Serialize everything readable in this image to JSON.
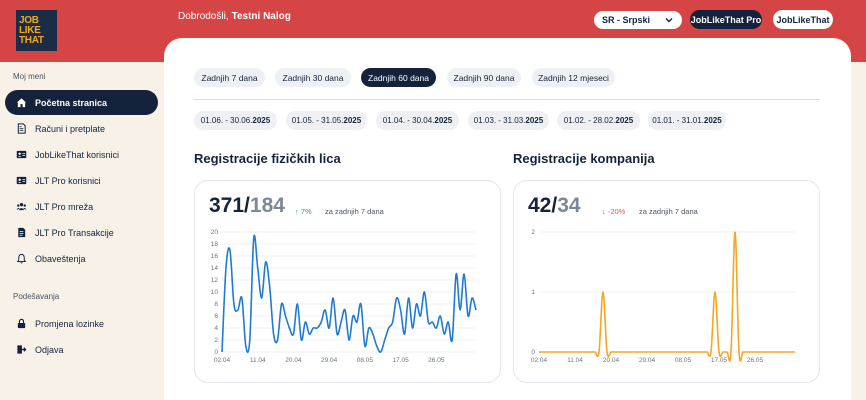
{
  "header": {
    "logo_lines": [
      "JOB",
      "LIKE",
      "THAT"
    ],
    "greeting": "Dobrodošli,",
    "user_name": "Testni Nalog",
    "language": "SR - Srpski",
    "pro_button": "JobLikeThat Pro",
    "jlt_button": "JobLikeThat"
  },
  "sidebar": {
    "menu_title": "Moj meni",
    "items": [
      {
        "label": "Početna stranica",
        "icon": "home-icon"
      },
      {
        "label": "Računi i pretplate",
        "icon": "invoice-icon"
      },
      {
        "label": "JobLikeThat korisnici",
        "icon": "id-card-icon"
      },
      {
        "label": "JLT Pro korisnici",
        "icon": "id-card-icon"
      },
      {
        "label": "JLT Pro mreža",
        "icon": "users-icon"
      },
      {
        "label": "JLT Pro Transakcije",
        "icon": "transactions-icon"
      },
      {
        "label": "Obaveštenja",
        "icon": "bell-icon"
      }
    ],
    "settings_title": "Podešavanja",
    "settings_items": [
      {
        "label": "Promjena lozinke",
        "icon": "lock-icon"
      },
      {
        "label": "Odjava",
        "icon": "logout-icon"
      }
    ]
  },
  "filters": {
    "ranges": [
      "Zadnjih 7 dana",
      "Zadnjih 30 dana",
      "Zadnjih 60 dana",
      "Zadnjih 90 dana",
      "Zadnjih 12 mjeseci"
    ],
    "active_range": "Zadnjih 60 dana",
    "months": [
      {
        "range": "01.06. - 30.06.",
        "year": "2025"
      },
      {
        "range": "01.05. - 31.05.",
        "year": "2025"
      },
      {
        "range": "01.04. - 30.04.",
        "year": "2025"
      },
      {
        "range": "01.03. - 31.03.",
        "year": "2025"
      },
      {
        "range": "01.02. - 28.02.",
        "year": "2025"
      },
      {
        "range": "01.01. - 31.01.",
        "year": "2025"
      }
    ]
  },
  "persons": {
    "title": "Registracije fizičkih lica",
    "current": "371",
    "previous": "184",
    "slash": "/",
    "trend": "↑ 7%",
    "period": "za zadnjih 7 dana"
  },
  "companies": {
    "title": "Registracije kompanija",
    "current": "42",
    "previous": "34",
    "slash": "/",
    "trend": "↓ -20%",
    "period": "za zadnjih 7 dana"
  },
  "colors": {
    "header_red": "#d64545",
    "navy": "#14233b",
    "persons_line": "#1f7bd1",
    "companies_line": "#f5a623",
    "trend_up": "#2fa66a",
    "trend_down": "#e05555"
  },
  "chart_data": [
    {
      "type": "line",
      "title": "Registracije fizičkih lica",
      "x_tick_labels": [
        "02.04",
        "11.04",
        "20.04",
        "29.04",
        "08.05",
        "17.05",
        "26.05"
      ],
      "ylim": [
        0,
        20
      ],
      "y_ticks": [
        0,
        2,
        4,
        6,
        8,
        10,
        12,
        14,
        16,
        18,
        20
      ],
      "grid": true,
      "series": [
        {
          "values": [
            0,
            14,
            17,
            8,
            7,
            9,
            1,
            2,
            19,
            14,
            9,
            15,
            11,
            3,
            2,
            8,
            6,
            4,
            3,
            8,
            2,
            5,
            3,
            4,
            4,
            5,
            7,
            4,
            9,
            3,
            5,
            7,
            2,
            6,
            5,
            8,
            1,
            4,
            3,
            1,
            0,
            2,
            4,
            5,
            9,
            7,
            3,
            9,
            4,
            8,
            6,
            10,
            5,
            5,
            4,
            6,
            3,
            5,
            2,
            13,
            7,
            13,
            6,
            9,
            7
          ]
        }
      ]
    },
    {
      "type": "line",
      "title": "Registracije kompanija",
      "x_tick_labels": [
        "02.04",
        "11.04",
        "20.04",
        "29.04",
        "08.05",
        "17.05",
        "26.05"
      ],
      "ylim": [
        0,
        2
      ],
      "y_ticks": [
        0,
        1,
        2
      ],
      "grid": true,
      "series": [
        {
          "values": [
            0,
            0,
            0,
            0,
            0,
            0,
            0,
            0,
            0,
            0,
            0,
            0,
            0,
            0,
            0,
            0,
            1,
            0,
            0,
            0,
            0,
            0,
            0,
            0,
            0,
            0,
            0,
            0,
            0,
            0,
            0,
            0,
            0,
            0,
            0,
            0,
            0,
            0,
            0,
            0,
            0,
            0,
            0,
            0,
            1,
            0,
            0,
            0,
            0,
            2,
            0,
            0,
            0,
            0,
            0,
            0,
            0,
            0,
            0,
            0,
            0,
            0,
            0,
            0,
            0
          ]
        }
      ]
    }
  ]
}
